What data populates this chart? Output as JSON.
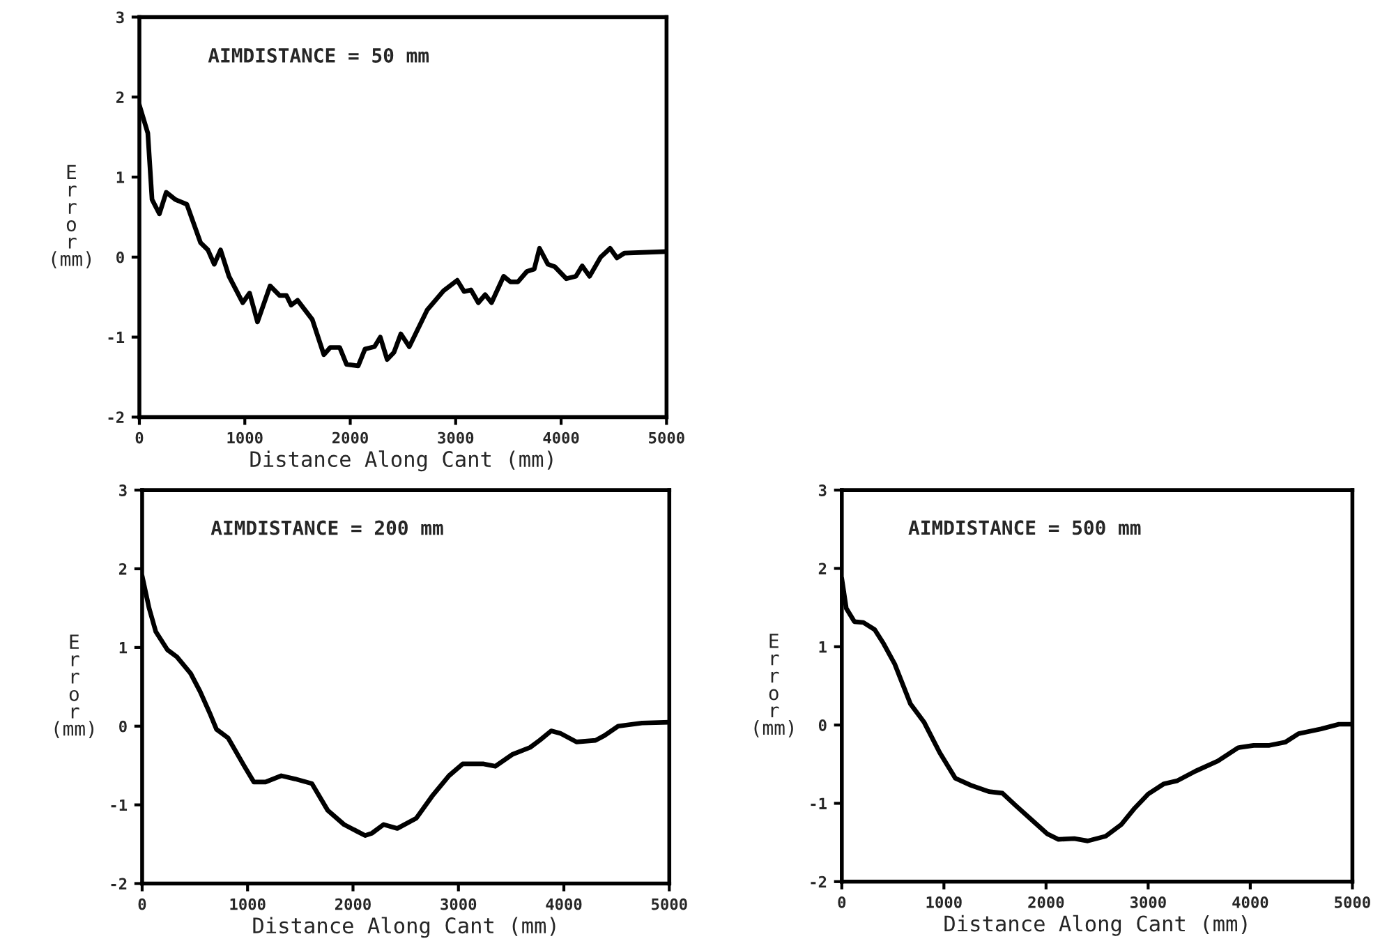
{
  "chart_data": [
    {
      "type": "line",
      "xlabel": "Distance Along Cant (mm)",
      "ylabel": "Error (mm)",
      "annotations": [
        "AIMDISTANCE = 50 mm"
      ],
      "xlim": [
        0,
        5000
      ],
      "ylim": [
        -2,
        3
      ],
      "xticks": [
        0,
        1000,
        2000,
        3000,
        4000,
        5000
      ],
      "yticks": [
        -2,
        -1,
        0,
        1,
        2,
        3
      ],
      "grid": false,
      "legend": false,
      "series": [
        {
          "color": "#000000",
          "x": [
            0,
            80,
            120,
            190,
            255,
            340,
            450,
            580,
            650,
            710,
            770,
            850,
            980,
            1045,
            1120,
            1240,
            1330,
            1395,
            1440,
            1500,
            1640,
            1750,
            1810,
            1900,
            1965,
            2075,
            2140,
            2230,
            2285,
            2350,
            2415,
            2480,
            2560,
            2730,
            2885,
            3015,
            3080,
            3145,
            3215,
            3280,
            3340,
            3455,
            3520,
            3590,
            3675,
            3745,
            3795,
            3875,
            3940,
            4050,
            4140,
            4200,
            4270,
            4375,
            4465,
            4530,
            4600,
            5000
          ],
          "values": [
            1.9,
            1.55,
            0.72,
            0.54,
            0.81,
            0.72,
            0.66,
            0.18,
            0.09,
            -0.09,
            0.09,
            -0.24,
            -0.57,
            -0.45,
            -0.81,
            -0.36,
            -0.48,
            -0.48,
            -0.6,
            -0.54,
            -0.78,
            -1.22,
            -1.13,
            -1.13,
            -1.34,
            -1.36,
            -1.15,
            -1.12,
            -1.0,
            -1.28,
            -1.19,
            -0.96,
            -1.12,
            -0.66,
            -0.42,
            -0.29,
            -0.43,
            -0.41,
            -0.57,
            -0.47,
            -0.57,
            -0.24,
            -0.31,
            -0.31,
            -0.18,
            -0.15,
            0.11,
            -0.09,
            -0.12,
            -0.27,
            -0.24,
            -0.11,
            -0.24,
            0.0,
            0.11,
            -0.01,
            0.05,
            0.07
          ]
        }
      ]
    },
    {
      "type": "line",
      "xlabel": "Distance Along Cant (mm)",
      "ylabel": "Error (mm)",
      "annotations": [
        "AIMDISTANCE = 200 mm"
      ],
      "xlim": [
        0,
        5000
      ],
      "ylim": [
        -2,
        3
      ],
      "xticks": [
        0,
        1000,
        2000,
        3000,
        4000,
        5000
      ],
      "yticks": [
        -2,
        -1,
        0,
        1,
        2,
        3
      ],
      "grid": false,
      "legend": false,
      "series": [
        {
          "color": "#000000",
          "x": [
            0,
            66,
            130,
            240,
            330,
            460,
            550,
            640,
            705,
            815,
            970,
            1060,
            1170,
            1320,
            1450,
            1610,
            1760,
            1915,
            2115,
            2180,
            2290,
            2420,
            2600,
            2750,
            2910,
            3040,
            3240,
            3350,
            3510,
            3680,
            3770,
            3880,
            3965,
            4120,
            4300,
            4385,
            4515,
            4740,
            5000
          ],
          "values": [
            1.91,
            1.5,
            1.2,
            0.97,
            0.88,
            0.67,
            0.44,
            0.17,
            -0.04,
            -0.15,
            -0.51,
            -0.71,
            -0.71,
            -0.63,
            -0.67,
            -0.73,
            -1.07,
            -1.25,
            -1.39,
            -1.36,
            -1.25,
            -1.3,
            -1.17,
            -0.89,
            -0.63,
            -0.48,
            -0.48,
            -0.51,
            -0.36,
            -0.27,
            -0.18,
            -0.06,
            -0.09,
            -0.2,
            -0.18,
            -0.12,
            0.0,
            0.04,
            0.05
          ]
        }
      ]
    },
    {
      "type": "line",
      "xlabel": "Distance Along Cant (mm)",
      "ylabel": "Error (mm)",
      "annotations": [
        "AIMDISTANCE = 500 mm"
      ],
      "xlim": [
        0,
        5000
      ],
      "ylim": [
        -2,
        3
      ],
      "xticks": [
        0,
        1000,
        2000,
        3000,
        4000,
        5000
      ],
      "yticks": [
        -2,
        -1,
        0,
        1,
        2,
        3
      ],
      "grid": false,
      "legend": false,
      "series": [
        {
          "color": "#000000",
          "x": [
            0,
            44,
            123,
            211,
            321,
            409,
            518,
            672,
            804,
            958,
            1112,
            1265,
            1441,
            1573,
            1705,
            1858,
            2012,
            2122,
            2276,
            2408,
            2584,
            2737,
            2869,
            3001,
            3155,
            3287,
            3462,
            3682,
            3880,
            4033,
            4187,
            4341,
            4473,
            4692,
            4868,
            5000
          ],
          "values": [
            1.87,
            1.49,
            1.32,
            1.31,
            1.22,
            1.04,
            0.78,
            0.27,
            0.04,
            -0.35,
            -0.68,
            -0.77,
            -0.85,
            -0.87,
            -1.03,
            -1.21,
            -1.39,
            -1.46,
            -1.45,
            -1.48,
            -1.42,
            -1.27,
            -1.06,
            -0.88,
            -0.75,
            -0.71,
            -0.59,
            -0.46,
            -0.29,
            -0.26,
            -0.26,
            -0.22,
            -0.11,
            -0.05,
            0.01,
            0.01
          ]
        }
      ]
    }
  ]
}
